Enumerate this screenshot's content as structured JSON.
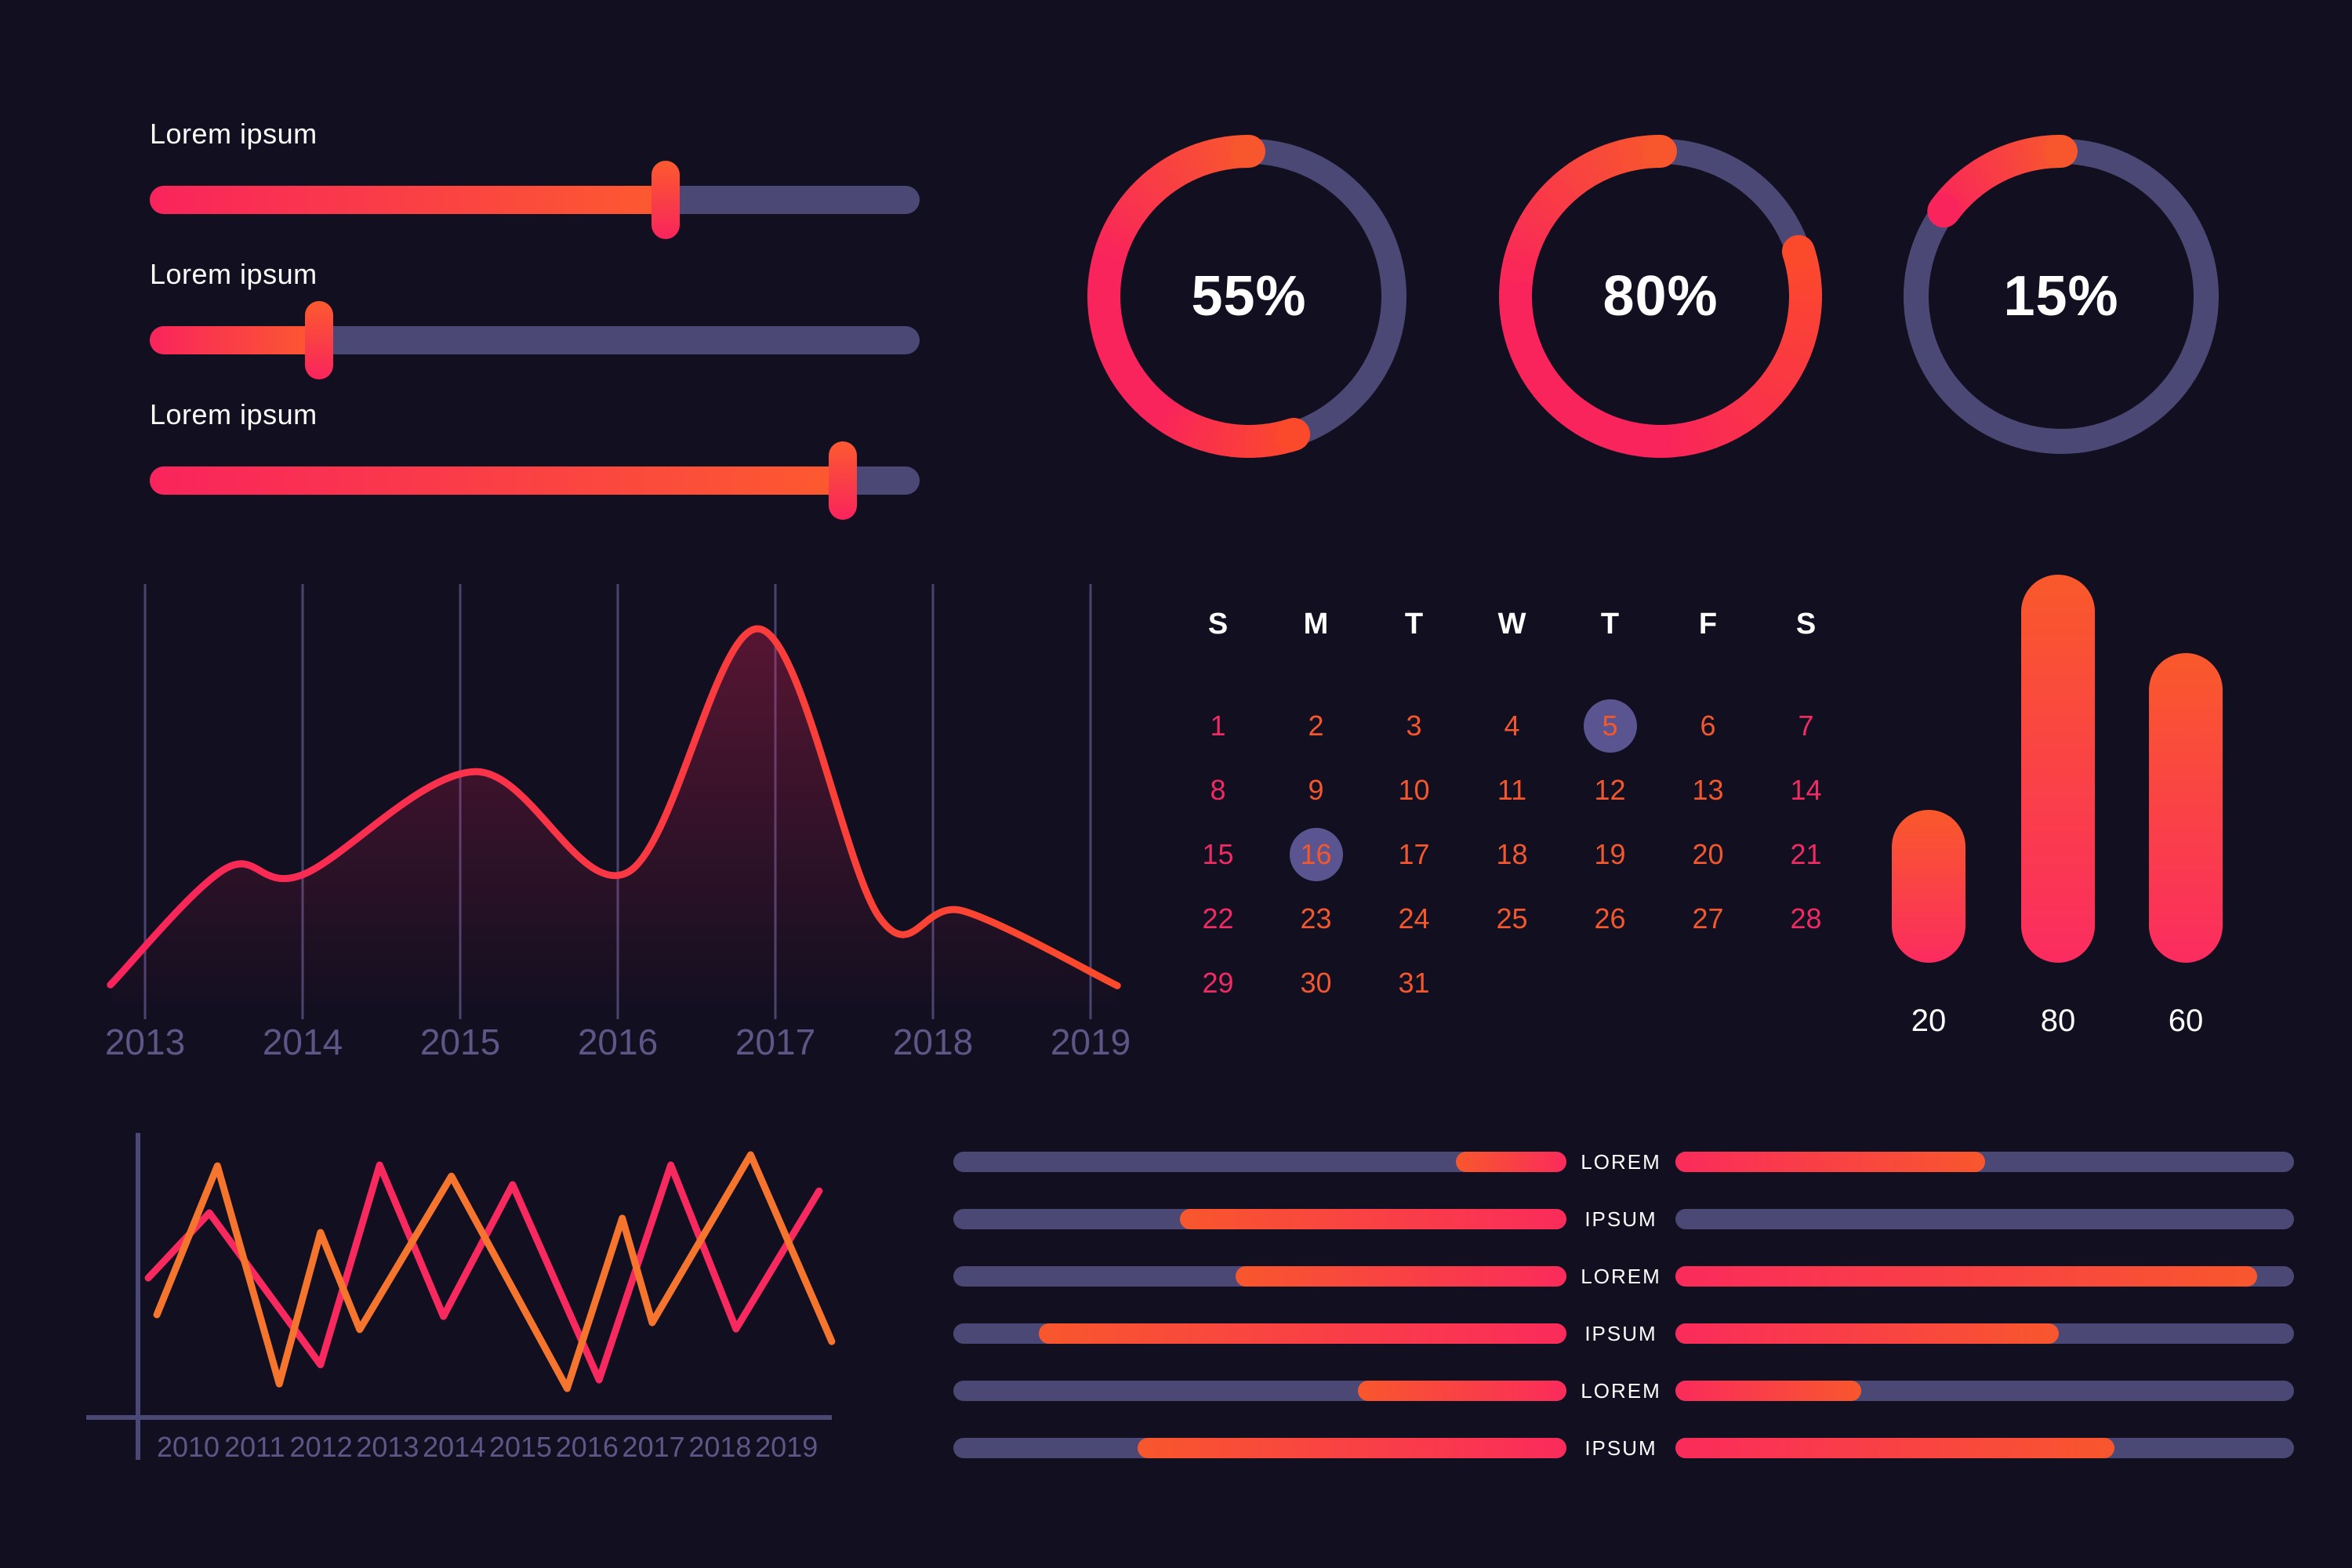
{
  "theme": {
    "background": "#110F20",
    "pink": "#F9245C",
    "orange": "#F8572D",
    "orange_deep": "#FB4A2B",
    "track_purple": "#4C4875",
    "grid_purple": "#484470",
    "tick_label_purple": "#5C5786",
    "calendar_highlight": "#5A5590",
    "calendar_weekend_pink": "#EE2B63",
    "calendar_weekday_orange": "#F2572E",
    "text_white": "#FFFFFF"
  },
  "sliders": {
    "items": [
      {
        "label": "Lorem ipsum",
        "value_pct": 67
      },
      {
        "label": "Lorem ipsum",
        "value_pct": 22
      },
      {
        "label": "Lorem ipsum",
        "value_pct": 90
      }
    ]
  },
  "chart_data": [
    {
      "id": "donut-gauges",
      "type": "donut",
      "items": [
        {
          "label": "55%",
          "percent": 55
        },
        {
          "label": "80%",
          "percent": 80
        },
        {
          "label": "15%",
          "percent": 15
        }
      ]
    },
    {
      "id": "area-trend",
      "type": "area",
      "x_ticks": [
        "2013",
        "2014",
        "2015",
        "2016",
        "2017",
        "2018",
        "2019"
      ],
      "ylim": [
        0,
        100
      ],
      "grid": "vertical-only",
      "points": [
        [
          2012.78,
          7.9
        ],
        [
          2013.51,
          34.6
        ],
        [
          2014.0,
          33.2
        ],
        [
          2015.1,
          56.9
        ],
        [
          2016.06,
          33.7
        ],
        [
          2016.9,
          89.7
        ],
        [
          2017.66,
          23.4
        ],
        [
          2018.19,
          24.9
        ],
        [
          2019.17,
          7.7
        ]
      ]
    },
    {
      "id": "rounded-bar",
      "type": "bar",
      "categories": [
        "20",
        "80",
        "60"
      ],
      "values": [
        20,
        80,
        60
      ]
    },
    {
      "id": "zigzag-lines",
      "type": "line",
      "x_ticks": [
        "2010",
        "2011",
        "2012",
        "2013",
        "2014",
        "2015",
        "2016",
        "2017",
        "2018",
        "2019"
      ],
      "ylim": [
        0,
        100
      ],
      "series": [
        {
          "name": "pink-series",
          "color": "#F8295F",
          "points": [
            [
              2009.4,
              49
            ],
            [
              2010.32,
              71.9
            ],
            [
              2011.99,
              18.5
            ],
            [
              2012.88,
              88.7
            ],
            [
              2013.84,
              35.5
            ],
            [
              2014.88,
              81.8
            ],
            [
              2016.18,
              13.2
            ],
            [
              2017.26,
              88.7
            ],
            [
              2018.24,
              31.1
            ],
            [
              2019.49,
              79.6
            ]
          ]
        },
        {
          "name": "orange-series",
          "color": "#F5752E",
          "points": [
            [
              2009.53,
              36.1
            ],
            [
              2010.44,
              88.4
            ],
            [
              2011.37,
              11.8
            ],
            [
              2011.99,
              65
            ],
            [
              2012.58,
              30.9
            ],
            [
              2013.96,
              84.8
            ],
            [
              2015.7,
              10.2
            ],
            [
              2016.53,
              70
            ],
            [
              2016.98,
              33.3
            ],
            [
              2018.46,
              92.3
            ],
            [
              2019.68,
              26.7
            ]
          ]
        }
      ]
    }
  ],
  "calendar": {
    "weekday_header": [
      "S",
      "M",
      "T",
      "W",
      "T",
      "F",
      "S"
    ],
    "weeks": [
      [
        1,
        2,
        3,
        4,
        5,
        6,
        7
      ],
      [
        8,
        9,
        10,
        11,
        12,
        13,
        14
      ],
      [
        15,
        16,
        17,
        18,
        19,
        20,
        21
      ],
      [
        22,
        23,
        24,
        25,
        26,
        27,
        28
      ],
      [
        29,
        30,
        31,
        null,
        null,
        null,
        null
      ]
    ],
    "highlighted_days": [
      5,
      16
    ]
  },
  "progress_rows": {
    "items": [
      {
        "label": "LOREM",
        "left_fill_start_pct": 82,
        "right_fill_pct": 50
      },
      {
        "label": "IPSUM",
        "left_fill_start_pct": 37,
        "right_fill_pct": 0
      },
      {
        "label": "LOREM",
        "left_fill_start_pct": 46,
        "right_fill_pct": 94
      },
      {
        "label": "IPSUM",
        "left_fill_start_pct": 14,
        "right_fill_pct": 62
      },
      {
        "label": "LOREM",
        "left_fill_start_pct": 66,
        "right_fill_pct": 30
      },
      {
        "label": "IPSUM",
        "left_fill_start_pct": 30,
        "right_fill_pct": 71
      }
    ]
  }
}
